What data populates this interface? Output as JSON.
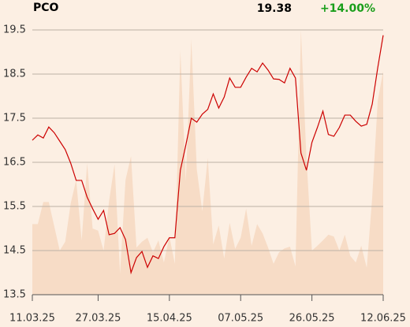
{
  "header": {
    "symbol": "PCO",
    "change": "+14.00%"
  },
  "chart_data": {
    "type": "line",
    "categories": [
      "11.03.25",
      null,
      null,
      null,
      null,
      null,
      null,
      null,
      null,
      null,
      null,
      null,
      "27.03.25",
      null,
      null,
      null,
      null,
      null,
      null,
      null,
      null,
      null,
      null,
      null,
      null,
      "15.04.25",
      null,
      null,
      null,
      null,
      null,
      null,
      null,
      null,
      null,
      null,
      null,
      null,
      "07.05.25",
      null,
      null,
      null,
      null,
      null,
      null,
      null,
      null,
      null,
      null,
      null,
      null,
      "26.05.25",
      null,
      null,
      null,
      null,
      null,
      null,
      null,
      null,
      null,
      null,
      null,
      null,
      "12.06.25"
    ],
    "series": [
      {
        "color": "#cc0000",
        "values": [
          17.0,
          17.12,
          17.05,
          17.3,
          17.17,
          16.98,
          16.79,
          16.48,
          16.09,
          16.09,
          15.71,
          15.45,
          15.21,
          15.41,
          14.86,
          14.89,
          15.02,
          14.75,
          14.0,
          14.34,
          14.48,
          14.12,
          14.38,
          14.32,
          14.59,
          14.79,
          14.79,
          16.32,
          16.89,
          17.5,
          17.41,
          17.59,
          17.7,
          18.05,
          17.73,
          17.98,
          18.41,
          18.2,
          18.2,
          18.43,
          18.63,
          18.55,
          18.75,
          18.59,
          18.39,
          18.38,
          18.3,
          18.63,
          18.41,
          16.71,
          16.32,
          16.95,
          17.29,
          17.66,
          17.13,
          17.09,
          17.29,
          17.57,
          17.57,
          17.43,
          17.32,
          17.36,
          17.82,
          18.64,
          19.38
        ]
      },
      {
        "color": "#f7dcc6",
        "values": [
          15.1,
          15.1,
          15.6,
          15.6,
          15.05,
          14.5,
          14.7,
          15.57,
          16.1,
          14.73,
          16.48,
          15.0,
          14.95,
          14.5,
          15.62,
          16.46,
          13.98,
          16.1,
          16.64,
          14.57,
          14.7,
          14.79,
          14.46,
          14.73,
          14.23,
          14.82,
          14.2,
          19.04,
          16.07,
          19.29,
          16.34,
          15.39,
          16.6,
          14.64,
          15.07,
          14.32,
          15.13,
          14.54,
          14.79,
          15.45,
          14.61,
          15.1,
          14.89,
          14.57,
          14.2,
          14.46,
          14.55,
          14.59,
          14.14,
          19.5,
          16.6,
          14.5,
          14.61,
          14.73,
          14.86,
          14.82,
          14.5,
          14.86,
          14.38,
          14.23,
          14.61,
          14.11,
          15.71,
          17.89,
          18.57
        ]
      }
    ],
    "ylim": [
      13.5,
      19.5
    ],
    "yticks": [
      13.5,
      14.5,
      15.5,
      16.5,
      17.5,
      18.5,
      19.5
    ],
    "grid": true
  }
}
